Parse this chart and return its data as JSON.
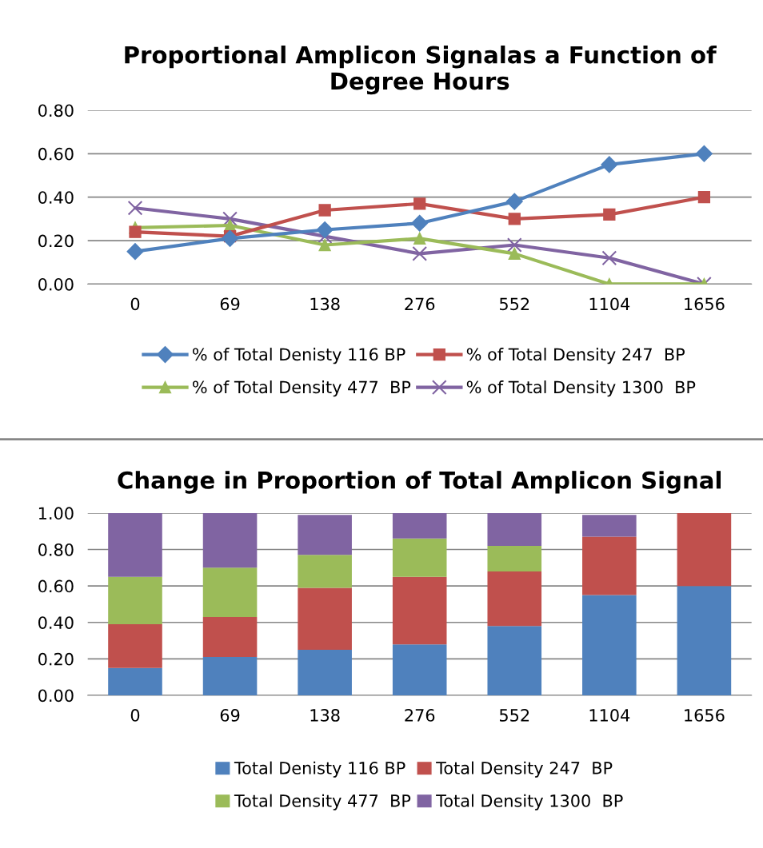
{
  "chart_data": [
    {
      "type": "line",
      "title": "Proportional Amplicon Signalas a Function of Degree Hours",
      "categories": [
        "0",
        "69",
        "138",
        "276",
        "552",
        "1104",
        "1656"
      ],
      "ylim": [
        0,
        0.8
      ],
      "yticks": [
        {
          "value": 0,
          "label": "0.00"
        },
        {
          "value": 0.2,
          "label": "0.20"
        },
        {
          "value": 0.4,
          "label": "0.40"
        },
        {
          "value": 0.6,
          "label": "0.60"
        },
        {
          "value": 0.8,
          "label": "0.80"
        }
      ],
      "grid": "y",
      "legend": "bottom",
      "series": [
        {
          "name": "% of Total Denisty 116 BP",
          "color": "#4f81bd",
          "marker": "diamond",
          "values": [
            0.15,
            0.21,
            0.25,
            0.28,
            0.38,
            0.55,
            0.6
          ]
        },
        {
          "name": "% of Total Density 247  BP",
          "color": "#c0504d",
          "marker": "square",
          "values": [
            0.24,
            0.22,
            0.34,
            0.37,
            0.3,
            0.32,
            0.4
          ]
        },
        {
          "name": "% of Total Density 477  BP",
          "color": "#9bbb59",
          "marker": "triangle",
          "values": [
            0.26,
            0.27,
            0.18,
            0.21,
            0.14,
            0,
            0
          ]
        },
        {
          "name": "% of Total Density 1300  BP",
          "color": "#8064a2",
          "marker": "cross",
          "values": [
            0.35,
            0.3,
            0.22,
            0.14,
            0.18,
            0.12,
            0
          ]
        }
      ]
    },
    {
      "type": "bar",
      "stacked": true,
      "title": "Change in Proportion of Total Amplicon Signal",
      "categories": [
        "0",
        "69",
        "138",
        "276",
        "552",
        "1104",
        "1656"
      ],
      "ylim": [
        0,
        1
      ],
      "yticks": [
        {
          "value": 0,
          "label": "0.00"
        },
        {
          "value": 0.2,
          "label": "0.20"
        },
        {
          "value": 0.4,
          "label": "0.40"
        },
        {
          "value": 0.6,
          "label": "0.60"
        },
        {
          "value": 0.8,
          "label": "0.80"
        },
        {
          "value": 1,
          "label": "1.00"
        }
      ],
      "grid": "y",
      "legend": "bottom",
      "series": [
        {
          "name": "Total Denisty 116 BP",
          "color": "#4f81bd",
          "values": [
            0.15,
            0.21,
            0.25,
            0.28,
            0.38,
            0.55,
            0.6
          ]
        },
        {
          "name": "Total Density 247  BP",
          "color": "#c0504d",
          "values": [
            0.24,
            0.22,
            0.34,
            0.37,
            0.3,
            0.32,
            0.4
          ]
        },
        {
          "name": "Total Density 477  BP",
          "color": "#9bbb59",
          "values": [
            0.26,
            0.27,
            0.18,
            0.21,
            0.14,
            0,
            0
          ]
        },
        {
          "name": "Total Density 1300  BP",
          "color": "#8064a2",
          "values": [
            0.35,
            0.3,
            0.22,
            0.14,
            0.18,
            0.12,
            0
          ]
        }
      ]
    }
  ]
}
